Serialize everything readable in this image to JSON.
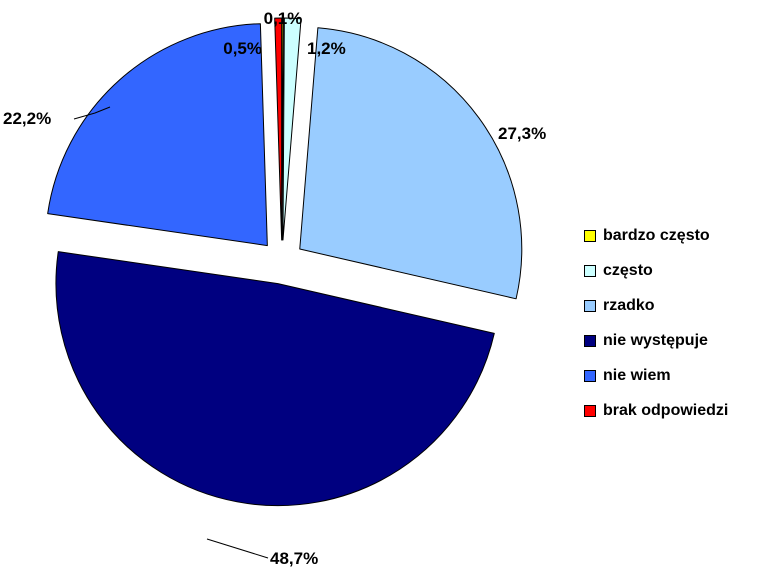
{
  "chart_data": {
    "type": "pie",
    "title": "",
    "exploded": true,
    "legend_position": "right",
    "categories": [
      "bardzo często",
      "często",
      "rzadko",
      "nie występuje",
      "nie wiem",
      "brak odpowiedzi"
    ],
    "values": [
      0.1,
      1.2,
      27.3,
      48.7,
      22.2,
      0.5
    ],
    "labels": [
      "0,1%",
      "1,2%",
      "27,3%",
      "48,7%",
      "22,2%",
      "0,5%"
    ],
    "colors": [
      "#ffff00",
      "#ccffff",
      "#99ccff",
      "#000080",
      "#3366ff",
      "#ff0000"
    ]
  }
}
